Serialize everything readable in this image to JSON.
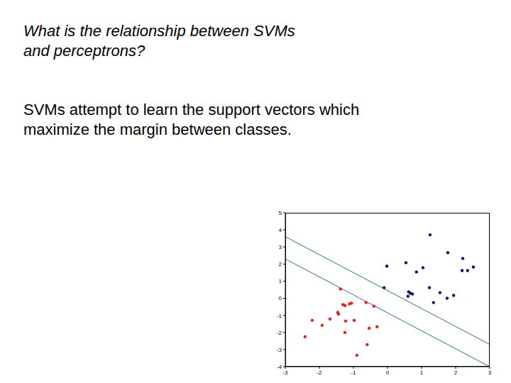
{
  "slide": {
    "question": [
      "What is the relationship between SVMs",
      "and perceptrons?"
    ],
    "text": [
      "SVMs attempt to learn the support vectors which",
      "maximize the margin between classes."
    ]
  },
  "chart_data": {
    "type": "scatter",
    "xlim": [
      -3,
      3
    ],
    "xticks": [
      -3,
      -2,
      -1,
      0,
      1,
      2,
      3
    ],
    "ylim": [
      -4,
      5
    ],
    "yticks": [
      -4,
      -3,
      -2,
      -1,
      0,
      1,
      2,
      3,
      4,
      5
    ],
    "grid": false,
    "series": [
      {
        "type": "scatter",
        "color": "#e8201c",
        "x": [
          -1.38,
          -1.31,
          -1.25,
          -1.12,
          -1.06,
          -2.42,
          -2.21,
          -1.92,
          -1.69,
          -1.44,
          -1.46,
          -1.23,
          -1.25,
          -0.98,
          -0.9,
          -0.63,
          -0.6,
          -0.54,
          -0.4,
          -0.31
        ],
        "values": [
          0.54,
          -0.37,
          -0.42,
          -0.33,
          -0.29,
          -2.25,
          -1.29,
          -1.58,
          -1.21,
          -0.92,
          -0.83,
          -1.33,
          -2.0,
          -1.29,
          -3.33,
          -0.25,
          -2.71,
          -1.75,
          -0.46,
          -1.67
        ]
      },
      {
        "type": "scatter",
        "color": "#12126e",
        "x": [
          1.25,
          1.77,
          2.21,
          -0.02,
          0.54,
          1.04,
          0.85,
          -0.1,
          0.62,
          0.67,
          0.73,
          0.6,
          1.23,
          1.54,
          1.35,
          1.75,
          1.94,
          2.19,
          2.35,
          2.52
        ],
        "values": [
          3.71,
          2.67,
          2.33,
          1.88,
          2.08,
          1.79,
          1.54,
          0.62,
          0.38,
          0.29,
          0.25,
          0.12,
          0.62,
          0.33,
          -0.25,
          0.0,
          0.17,
          1.62,
          1.62,
          1.83
        ]
      },
      {
        "type": "line",
        "color": "#2a6f97",
        "x": [
          -3,
          3
        ],
        "values": [
          3.6,
          -2.7
        ]
      },
      {
        "type": "line",
        "color": "#2a6f97",
        "x": [
          -3,
          3
        ],
        "values": [
          2.3,
          -4.0
        ]
      }
    ]
  }
}
